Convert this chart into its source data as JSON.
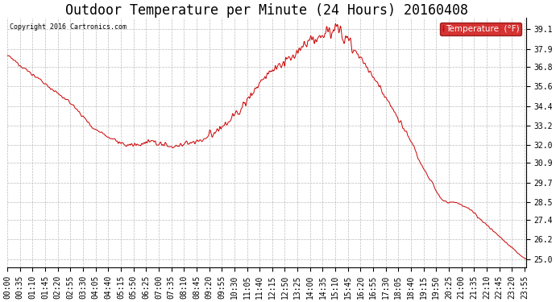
{
  "title": "Outdoor Temperature per Minute (24 Hours) 20160408",
  "copyright_text": "Copyright 2016 Cartronics.com",
  "legend_label": "Temperature  (°F)",
  "line_color": "#cc0000",
  "legend_bg": "#cc0000",
  "legend_text_color": "#ffffff",
  "background_color": "#ffffff",
  "grid_color": "#bbbbbb",
  "yticks": [
    25.0,
    26.2,
    27.4,
    28.5,
    29.7,
    30.9,
    32.0,
    33.2,
    34.4,
    35.6,
    36.8,
    37.9,
    39.1
  ],
  "ylim": [
    24.5,
    39.8
  ],
  "n_minutes": 1440,
  "title_fontsize": 12,
  "axis_fontsize": 7,
  "xtick_step": 35,
  "keypoints_minutes": [
    0,
    30,
    60,
    90,
    120,
    150,
    180,
    200,
    220,
    240,
    260,
    280,
    300,
    320,
    340,
    360,
    380,
    400,
    420,
    440,
    460,
    480,
    500,
    520,
    540,
    550,
    560,
    570,
    580,
    590,
    600,
    610,
    620,
    630,
    640,
    650,
    660,
    670,
    680,
    690,
    700,
    710,
    720,
    730,
    740,
    750,
    760,
    770,
    780,
    790,
    800,
    810,
    820,
    830,
    840,
    850,
    860,
    870,
    880,
    890,
    900,
    910,
    920,
    930,
    940,
    950,
    960,
    970,
    980,
    990,
    1000,
    1010,
    1020,
    1030,
    1040,
    1050,
    1060,
    1070,
    1080,
    1090,
    1100,
    1110,
    1115,
    1120,
    1125,
    1130,
    1135,
    1140,
    1150,
    1160,
    1170,
    1180,
    1190,
    1200,
    1210,
    1220,
    1230,
    1240,
    1250,
    1260,
    1270,
    1280,
    1290,
    1300,
    1310,
    1320,
    1330,
    1340,
    1350,
    1360,
    1370,
    1380,
    1390,
    1400,
    1410,
    1420,
    1430,
    1439
  ],
  "keypoints_temps": [
    37.5,
    37.0,
    36.5,
    36.0,
    35.5,
    35.0,
    34.5,
    34.0,
    33.5,
    33.0,
    32.8,
    32.5,
    32.3,
    32.0,
    32.0,
    32.0,
    32.1,
    32.2,
    32.1,
    32.0,
    31.9,
    32.0,
    32.1,
    32.2,
    32.3,
    32.4,
    32.5,
    32.7,
    32.9,
    33.0,
    33.2,
    33.4,
    33.6,
    33.8,
    34.0,
    34.3,
    34.6,
    34.9,
    35.2,
    35.5,
    35.8,
    36.0,
    36.3,
    36.5,
    36.7,
    36.8,
    36.9,
    37.0,
    37.2,
    37.4,
    37.6,
    37.8,
    38.0,
    38.2,
    38.4,
    38.5,
    38.6,
    38.7,
    38.8,
    38.9,
    39.0,
    39.1,
    39.0,
    38.8,
    38.6,
    38.3,
    38.0,
    37.7,
    37.4,
    37.0,
    36.7,
    36.3,
    36.0,
    35.7,
    35.4,
    35.0,
    34.6,
    34.2,
    33.8,
    33.4,
    33.0,
    32.6,
    32.4,
    32.2,
    32.0,
    31.8,
    31.5,
    31.2,
    30.8,
    30.4,
    30.0,
    29.7,
    29.2,
    28.8,
    28.6,
    28.5,
    28.5,
    28.5,
    28.4,
    28.3,
    28.2,
    28.1,
    27.9,
    27.7,
    27.5,
    27.3,
    27.1,
    26.9,
    26.7,
    26.5,
    26.3,
    26.1,
    25.9,
    25.7,
    25.5,
    25.3,
    25.1,
    25.0
  ]
}
